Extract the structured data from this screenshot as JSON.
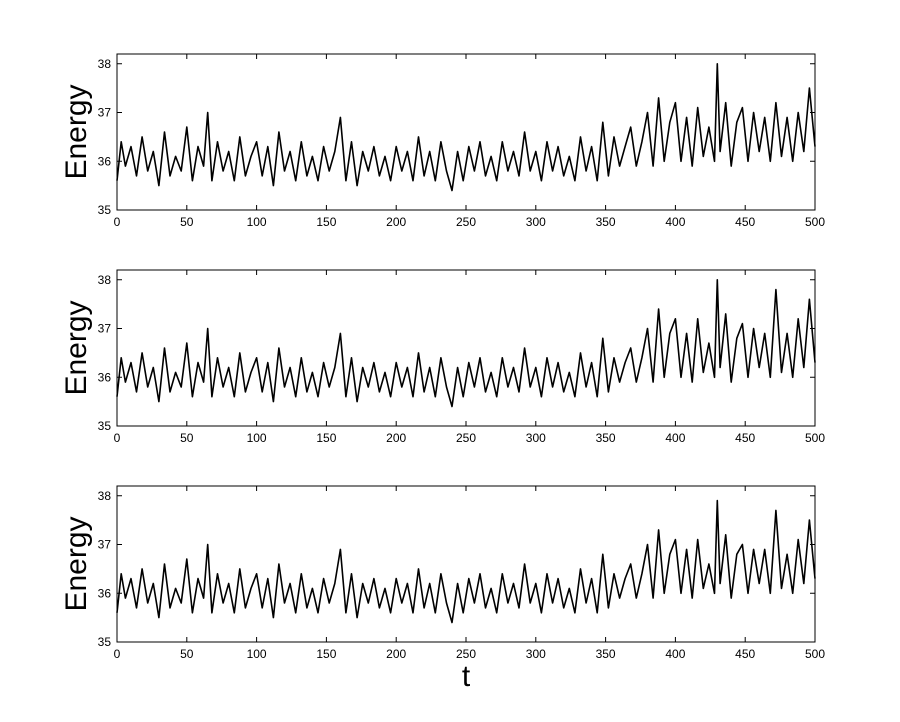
{
  "chart_data": [
    {
      "type": "line",
      "xlabel": "",
      "ylabel": "Energy",
      "xlim": [
        0,
        500
      ],
      "ylim": [
        35,
        38.2
      ],
      "xticks": [
        0,
        50,
        100,
        150,
        200,
        250,
        300,
        350,
        400,
        450,
        500
      ],
      "yticks": [
        35,
        36,
        37,
        38
      ],
      "grid": false,
      "line_color": "#000000",
      "series": [
        {
          "x": [
            0,
            3,
            6,
            10,
            14,
            18,
            22,
            26,
            30,
            34,
            38,
            42,
            46,
            50,
            54,
            58,
            62,
            65,
            68,
            72,
            76,
            80,
            84,
            88,
            92,
            96,
            100,
            104,
            108,
            112,
            116,
            120,
            124,
            128,
            132,
            136,
            140,
            144,
            148,
            152,
            156,
            160,
            164,
            168,
            172,
            176,
            180,
            184,
            188,
            192,
            196,
            200,
            204,
            208,
            212,
            216,
            220,
            224,
            228,
            232,
            236,
            240,
            244,
            248,
            252,
            256,
            260,
            264,
            268,
            272,
            276,
            280,
            284,
            288,
            292,
            296,
            300,
            304,
            308,
            312,
            316,
            320,
            324,
            328,
            332,
            336,
            340,
            344,
            348,
            352,
            356,
            360,
            364,
            368,
            372,
            376,
            380,
            384,
            388,
            392,
            396,
            400,
            404,
            408,
            412,
            416,
            420,
            424,
            428,
            430,
            432,
            436,
            440,
            444,
            448,
            452,
            456,
            460,
            464,
            468,
            472,
            476,
            480,
            484,
            488,
            492,
            496,
            500
          ],
          "y": [
            35.6,
            36.4,
            35.9,
            36.3,
            35.7,
            36.5,
            35.8,
            36.2,
            35.5,
            36.6,
            35.7,
            36.1,
            35.8,
            36.7,
            35.6,
            36.3,
            35.9,
            37.0,
            35.6,
            36.4,
            35.8,
            36.2,
            35.6,
            36.5,
            35.7,
            36.1,
            36.4,
            35.7,
            36.3,
            35.5,
            36.6,
            35.8,
            36.2,
            35.6,
            36.4,
            35.7,
            36.1,
            35.6,
            36.3,
            35.8,
            36.2,
            36.9,
            35.6,
            36.4,
            35.5,
            36.2,
            35.8,
            36.3,
            35.7,
            36.1,
            35.6,
            36.3,
            35.8,
            36.2,
            35.6,
            36.5,
            35.7,
            36.2,
            35.6,
            36.4,
            35.8,
            35.4,
            36.2,
            35.6,
            36.3,
            35.8,
            36.4,
            35.7,
            36.1,
            35.6,
            36.4,
            35.8,
            36.2,
            35.7,
            36.6,
            35.8,
            36.2,
            35.6,
            36.4,
            35.8,
            36.3,
            35.7,
            36.1,
            35.6,
            36.5,
            35.8,
            36.3,
            35.6,
            36.8,
            35.7,
            36.5,
            35.9,
            36.3,
            36.7,
            35.9,
            36.4,
            37.0,
            35.9,
            37.3,
            36.0,
            36.8,
            37.2,
            36.0,
            36.9,
            35.9,
            37.1,
            36.1,
            36.7,
            36.0,
            38.0,
            36.2,
            37.2,
            35.9,
            36.8,
            37.1,
            36.0,
            37.0,
            36.2,
            36.9,
            36.0,
            37.2,
            36.1,
            36.9,
            36.0,
            37.0,
            36.2,
            37.5,
            36.3
          ]
        }
      ]
    },
    {
      "type": "line",
      "xlabel": "",
      "ylabel": "Energy",
      "xlim": [
        0,
        500
      ],
      "ylim": [
        35,
        38.2
      ],
      "xticks": [
        0,
        50,
        100,
        150,
        200,
        250,
        300,
        350,
        400,
        450,
        500
      ],
      "yticks": [
        35,
        36,
        37,
        38
      ],
      "grid": false,
      "line_color": "#000000",
      "series": [
        {
          "x": [
            0,
            3,
            6,
            10,
            14,
            18,
            22,
            26,
            30,
            34,
            38,
            42,
            46,
            50,
            54,
            58,
            62,
            65,
            68,
            72,
            76,
            80,
            84,
            88,
            92,
            96,
            100,
            104,
            108,
            112,
            116,
            120,
            124,
            128,
            132,
            136,
            140,
            144,
            148,
            152,
            156,
            160,
            164,
            168,
            172,
            176,
            180,
            184,
            188,
            192,
            196,
            200,
            204,
            208,
            212,
            216,
            220,
            224,
            228,
            232,
            236,
            240,
            244,
            248,
            252,
            256,
            260,
            264,
            268,
            272,
            276,
            280,
            284,
            288,
            292,
            296,
            300,
            304,
            308,
            312,
            316,
            320,
            324,
            328,
            332,
            336,
            340,
            344,
            348,
            352,
            356,
            360,
            364,
            368,
            372,
            376,
            380,
            384,
            388,
            392,
            396,
            400,
            404,
            408,
            412,
            416,
            420,
            424,
            428,
            430,
            432,
            436,
            440,
            444,
            448,
            452,
            456,
            460,
            464,
            468,
            472,
            476,
            480,
            484,
            488,
            492,
            496,
            500
          ],
          "y": [
            35.6,
            36.4,
            35.9,
            36.3,
            35.7,
            36.5,
            35.8,
            36.2,
            35.5,
            36.6,
            35.7,
            36.1,
            35.8,
            36.7,
            35.6,
            36.3,
            35.9,
            37.0,
            35.6,
            36.4,
            35.8,
            36.2,
            35.6,
            36.5,
            35.7,
            36.1,
            36.4,
            35.7,
            36.3,
            35.5,
            36.6,
            35.8,
            36.2,
            35.6,
            36.4,
            35.7,
            36.1,
            35.6,
            36.3,
            35.8,
            36.2,
            36.9,
            35.6,
            36.4,
            35.5,
            36.2,
            35.8,
            36.3,
            35.7,
            36.1,
            35.6,
            36.3,
            35.8,
            36.2,
            35.6,
            36.5,
            35.7,
            36.2,
            35.6,
            36.4,
            35.8,
            35.4,
            36.2,
            35.6,
            36.3,
            35.8,
            36.4,
            35.7,
            36.1,
            35.6,
            36.4,
            35.8,
            36.2,
            35.7,
            36.6,
            35.8,
            36.2,
            35.6,
            36.4,
            35.8,
            36.3,
            35.7,
            36.1,
            35.6,
            36.5,
            35.8,
            36.3,
            35.6,
            36.8,
            35.7,
            36.4,
            35.9,
            36.3,
            36.6,
            35.9,
            36.4,
            37.0,
            35.9,
            37.4,
            36.0,
            36.9,
            37.2,
            36.0,
            36.9,
            35.9,
            37.2,
            36.1,
            36.7,
            36.0,
            38.0,
            36.2,
            37.3,
            35.9,
            36.8,
            37.1,
            36.0,
            37.0,
            36.2,
            36.9,
            36.0,
            37.8,
            36.1,
            36.9,
            36.0,
            37.2,
            36.2,
            37.6,
            36.3
          ]
        }
      ]
    },
    {
      "type": "line",
      "xlabel": "t",
      "ylabel": "Energy",
      "xlim": [
        0,
        500
      ],
      "ylim": [
        35,
        38.2
      ],
      "xticks": [
        0,
        50,
        100,
        150,
        200,
        250,
        300,
        350,
        400,
        450,
        500
      ],
      "yticks": [
        35,
        36,
        37,
        38
      ],
      "grid": false,
      "line_color": "#000000",
      "series": [
        {
          "x": [
            0,
            3,
            6,
            10,
            14,
            18,
            22,
            26,
            30,
            34,
            38,
            42,
            46,
            50,
            54,
            58,
            62,
            65,
            68,
            72,
            76,
            80,
            84,
            88,
            92,
            96,
            100,
            104,
            108,
            112,
            116,
            120,
            124,
            128,
            132,
            136,
            140,
            144,
            148,
            152,
            156,
            160,
            164,
            168,
            172,
            176,
            180,
            184,
            188,
            192,
            196,
            200,
            204,
            208,
            212,
            216,
            220,
            224,
            228,
            232,
            236,
            240,
            244,
            248,
            252,
            256,
            260,
            264,
            268,
            272,
            276,
            280,
            284,
            288,
            292,
            296,
            300,
            304,
            308,
            312,
            316,
            320,
            324,
            328,
            332,
            336,
            340,
            344,
            348,
            352,
            356,
            360,
            364,
            368,
            372,
            376,
            380,
            384,
            388,
            392,
            396,
            400,
            404,
            408,
            412,
            416,
            420,
            424,
            428,
            430,
            432,
            436,
            440,
            444,
            448,
            452,
            456,
            460,
            464,
            468,
            472,
            476,
            480,
            484,
            488,
            492,
            496,
            500
          ],
          "y": [
            35.6,
            36.4,
            35.9,
            36.3,
            35.7,
            36.5,
            35.8,
            36.2,
            35.5,
            36.6,
            35.7,
            36.1,
            35.8,
            36.7,
            35.6,
            36.3,
            35.9,
            37.0,
            35.6,
            36.4,
            35.8,
            36.2,
            35.6,
            36.5,
            35.7,
            36.1,
            36.4,
            35.7,
            36.3,
            35.5,
            36.6,
            35.8,
            36.2,
            35.6,
            36.4,
            35.7,
            36.1,
            35.6,
            36.3,
            35.8,
            36.2,
            36.9,
            35.6,
            36.4,
            35.5,
            36.2,
            35.8,
            36.3,
            35.7,
            36.1,
            35.6,
            36.3,
            35.8,
            36.2,
            35.6,
            36.5,
            35.7,
            36.2,
            35.6,
            36.4,
            35.8,
            35.4,
            36.2,
            35.6,
            36.3,
            35.8,
            36.4,
            35.7,
            36.1,
            35.6,
            36.4,
            35.8,
            36.2,
            35.7,
            36.6,
            35.8,
            36.2,
            35.6,
            36.4,
            35.8,
            36.3,
            35.7,
            36.1,
            35.6,
            36.5,
            35.8,
            36.3,
            35.6,
            36.8,
            35.7,
            36.4,
            35.9,
            36.3,
            36.6,
            35.9,
            36.4,
            37.0,
            35.9,
            37.3,
            36.0,
            36.8,
            37.1,
            36.0,
            36.9,
            35.9,
            37.1,
            36.1,
            36.6,
            36.0,
            37.9,
            36.2,
            37.2,
            35.9,
            36.8,
            37.0,
            36.0,
            36.9,
            36.2,
            36.9,
            36.0,
            37.7,
            36.1,
            36.8,
            36.0,
            37.1,
            36.2,
            37.5,
            36.3
          ]
        }
      ]
    }
  ]
}
